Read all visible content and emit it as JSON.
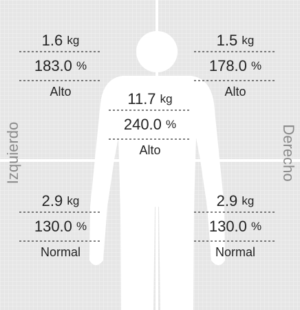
{
  "units": {
    "mass": "kg",
    "percent": "%"
  },
  "side_labels": {
    "left": "Izquierdo",
    "right": "Derecho"
  },
  "segments": [
    {
      "mass": 1.6,
      "percent": "183.0",
      "status": "Alto"
    },
    {
      "mass": 1.5,
      "percent": "178.0",
      "status": "Alto"
    },
    {
      "mass": 11.7,
      "percent": "240.0",
      "status": "Alto"
    },
    {
      "mass": 2.9,
      "percent": "130.0",
      "status": "Normal"
    },
    {
      "mass": 2.9,
      "percent": "130.0",
      "status": "Normal"
    }
  ]
}
